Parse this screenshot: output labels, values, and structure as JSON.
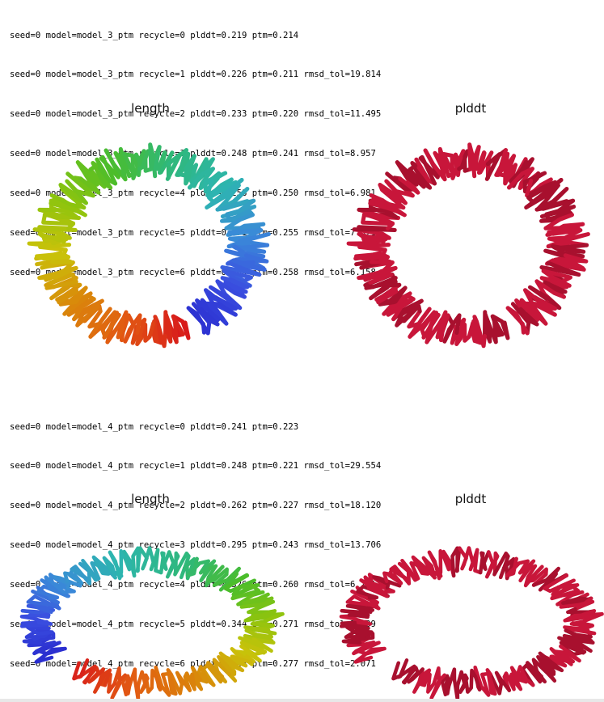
{
  "blocks": [
    {
      "lines": [
        "seed=0 model=model_3_ptm recycle=0 plddt=0.219 ptm=0.214",
        "seed=0 model=model_3_ptm recycle=1 plddt=0.226 ptm=0.211 rmsd_tol=19.814",
        "seed=0 model=model_3_ptm recycle=2 plddt=0.233 ptm=0.220 rmsd_tol=11.495",
        "seed=0 model=model_3_ptm recycle=3 plddt=0.248 ptm=0.241 rmsd_tol=8.957",
        "seed=0 model=model_3_ptm recycle=4 plddt=0.258 ptm=0.250 rmsd_tol=6.981",
        "seed=0 model=model_3_ptm recycle=5 plddt=0.271 ptm=0.255 rmsd_tol=7.071",
        "seed=0 model=model_3_ptm recycle=6 plddt=0.280 ptm=0.258 rmsd_tol=6.158"
      ],
      "panels": [
        {
          "title": "length",
          "coloring": "rainbow"
        },
        {
          "title": "plddt",
          "coloring": "crimson"
        }
      ]
    },
    {
      "lines": [
        "seed=0 model=model_4_ptm recycle=0 plddt=0.241 ptm=0.223",
        "seed=0 model=model_4_ptm recycle=1 plddt=0.248 ptm=0.221 rmsd_tol=29.554",
        "seed=0 model=model_4_ptm recycle=2 plddt=0.262 ptm=0.227 rmsd_tol=18.120",
        "seed=0 model=model_4_ptm recycle=3 plddt=0.295 ptm=0.243 rmsd_tol=13.706",
        "seed=0 model=model_4_ptm recycle=4 plddt=0.326 ptm=0.260 rmsd_tol=6.221",
        "seed=0 model=model_4_ptm recycle=5 plddt=0.344 ptm=0.271 rmsd_tol=3.739",
        "seed=0 model=model_4_ptm recycle=6 plddt=0.348 ptm=0.277 rmsd_tol=2.071"
      ],
      "panels": [
        {
          "title": "length",
          "coloring": "rainbow"
        },
        {
          "title": "plddt",
          "coloring": "crimson"
        }
      ]
    }
  ],
  "colors": {
    "plddt_main": "#c8163a",
    "plddt_dark": "#a8102e",
    "rainbow": [
      "#d81b1b",
      "#e25a12",
      "#d98a0a",
      "#c9c20a",
      "#8ec40e",
      "#4cbd2a",
      "#2fb87a",
      "#2db5b0",
      "#3a8ad8",
      "#3a4fe0",
      "#2b2fd0"
    ]
  }
}
